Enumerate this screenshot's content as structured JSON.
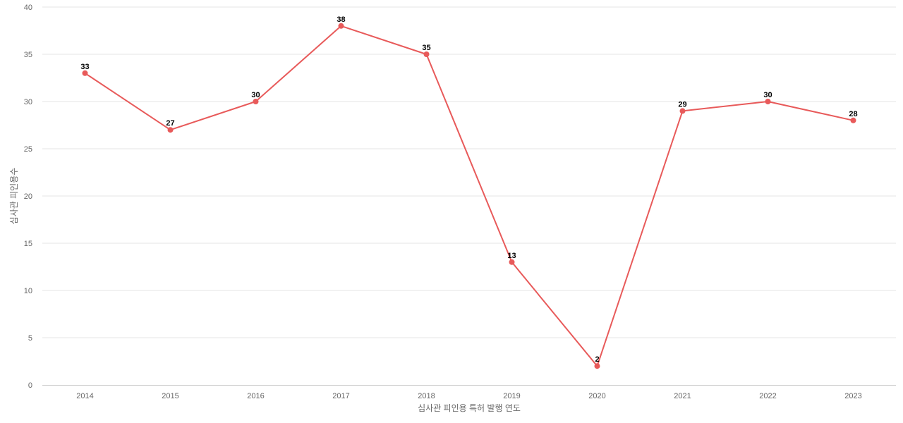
{
  "chart_data": {
    "type": "line",
    "title": "",
    "xlabel": "심사관 피인용 특허 발행 연도",
    "ylabel": "심사관 피인용수",
    "categories": [
      "2014",
      "2015",
      "2016",
      "2017",
      "2018",
      "2019",
      "2020",
      "2021",
      "2022",
      "2023"
    ],
    "series": [
      {
        "values": [
          33,
          27,
          30,
          38,
          35,
          13,
          2,
          29,
          30,
          28
        ]
      }
    ],
    "ylim": [
      0,
      40
    ],
    "yticks": [
      "0",
      "5",
      "10",
      "15",
      "20",
      "25",
      "30",
      "35",
      "40"
    ],
    "grid": true,
    "legend": "none",
    "colors": {
      "line": "#e85a5a",
      "grid": "#e6e6e6",
      "axis": "#cccccc",
      "tick_text": "#666666",
      "label_text": "#000000"
    }
  }
}
